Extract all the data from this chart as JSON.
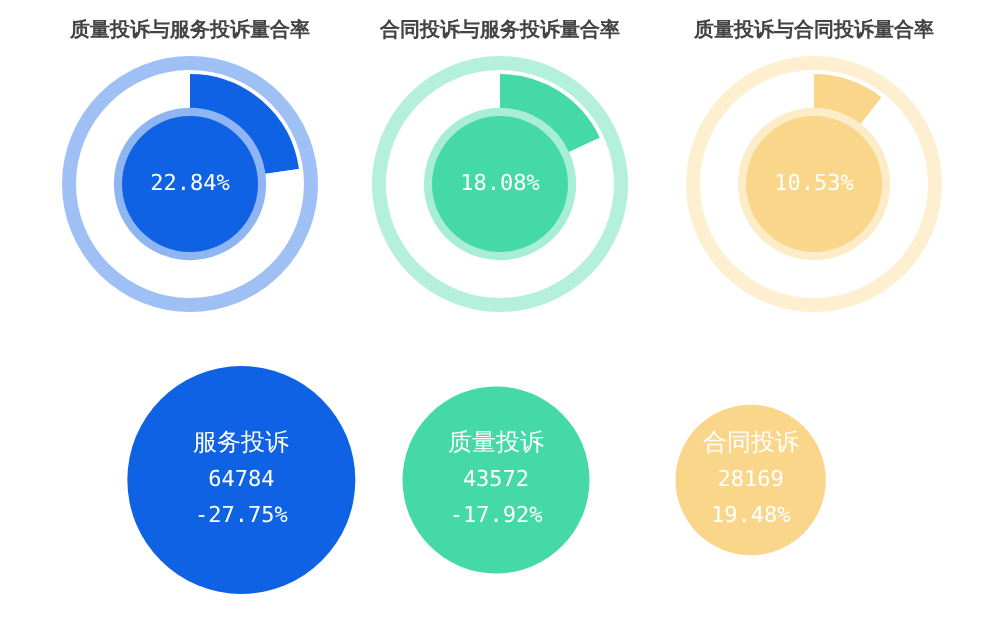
{
  "chart_data": [
    {
      "type": "donut",
      "title": "质量投诉与服务投诉量合率",
      "categories": [
        null,
        null
      ],
      "values": [
        22.84,
        77.16
      ],
      "colors": [
        "#0f62e3",
        "#ffffff"
      ],
      "value_labels": [
        "22.84%",
        null
      ]
    },
    {
      "type": "donut",
      "title": "合同投诉与服务投诉量合率",
      "categories": [
        null,
        null
      ],
      "values": [
        18.08,
        81.92
      ],
      "colors": [
        "#45d9a8",
        "#ffffff"
      ],
      "value_labels": [
        "18.08%",
        null
      ]
    },
    {
      "type": "donut",
      "title": "质量投诉与合同投诉量合率",
      "categories": [
        null,
        null
      ],
      "values": [
        10.53,
        89.47
      ],
      "colors": [
        "#fad68a",
        "#ffffff"
      ],
      "value_labels": [
        "10.53%",
        null
      ]
    },
    {
      "type": "other",
      "categories": [
        "服务投诉",
        "质量投诉",
        "合同投诉"
      ],
      "series": [
        {
          "values": [
            64784,
            43572,
            28169
          ],
          "colors": [
            "#0f62e3",
            "#45d9a8",
            "#fad68a"
          ],
          "value_labels": [
            "64784",
            "43572",
            "28169"
          ]
        },
        {
          "values": [
            -27.75,
            -17.92,
            19.48
          ],
          "value_labels": [
            "-27.75%",
            "-17.92%",
            "19.48%"
          ]
        }
      ]
    }
  ]
}
